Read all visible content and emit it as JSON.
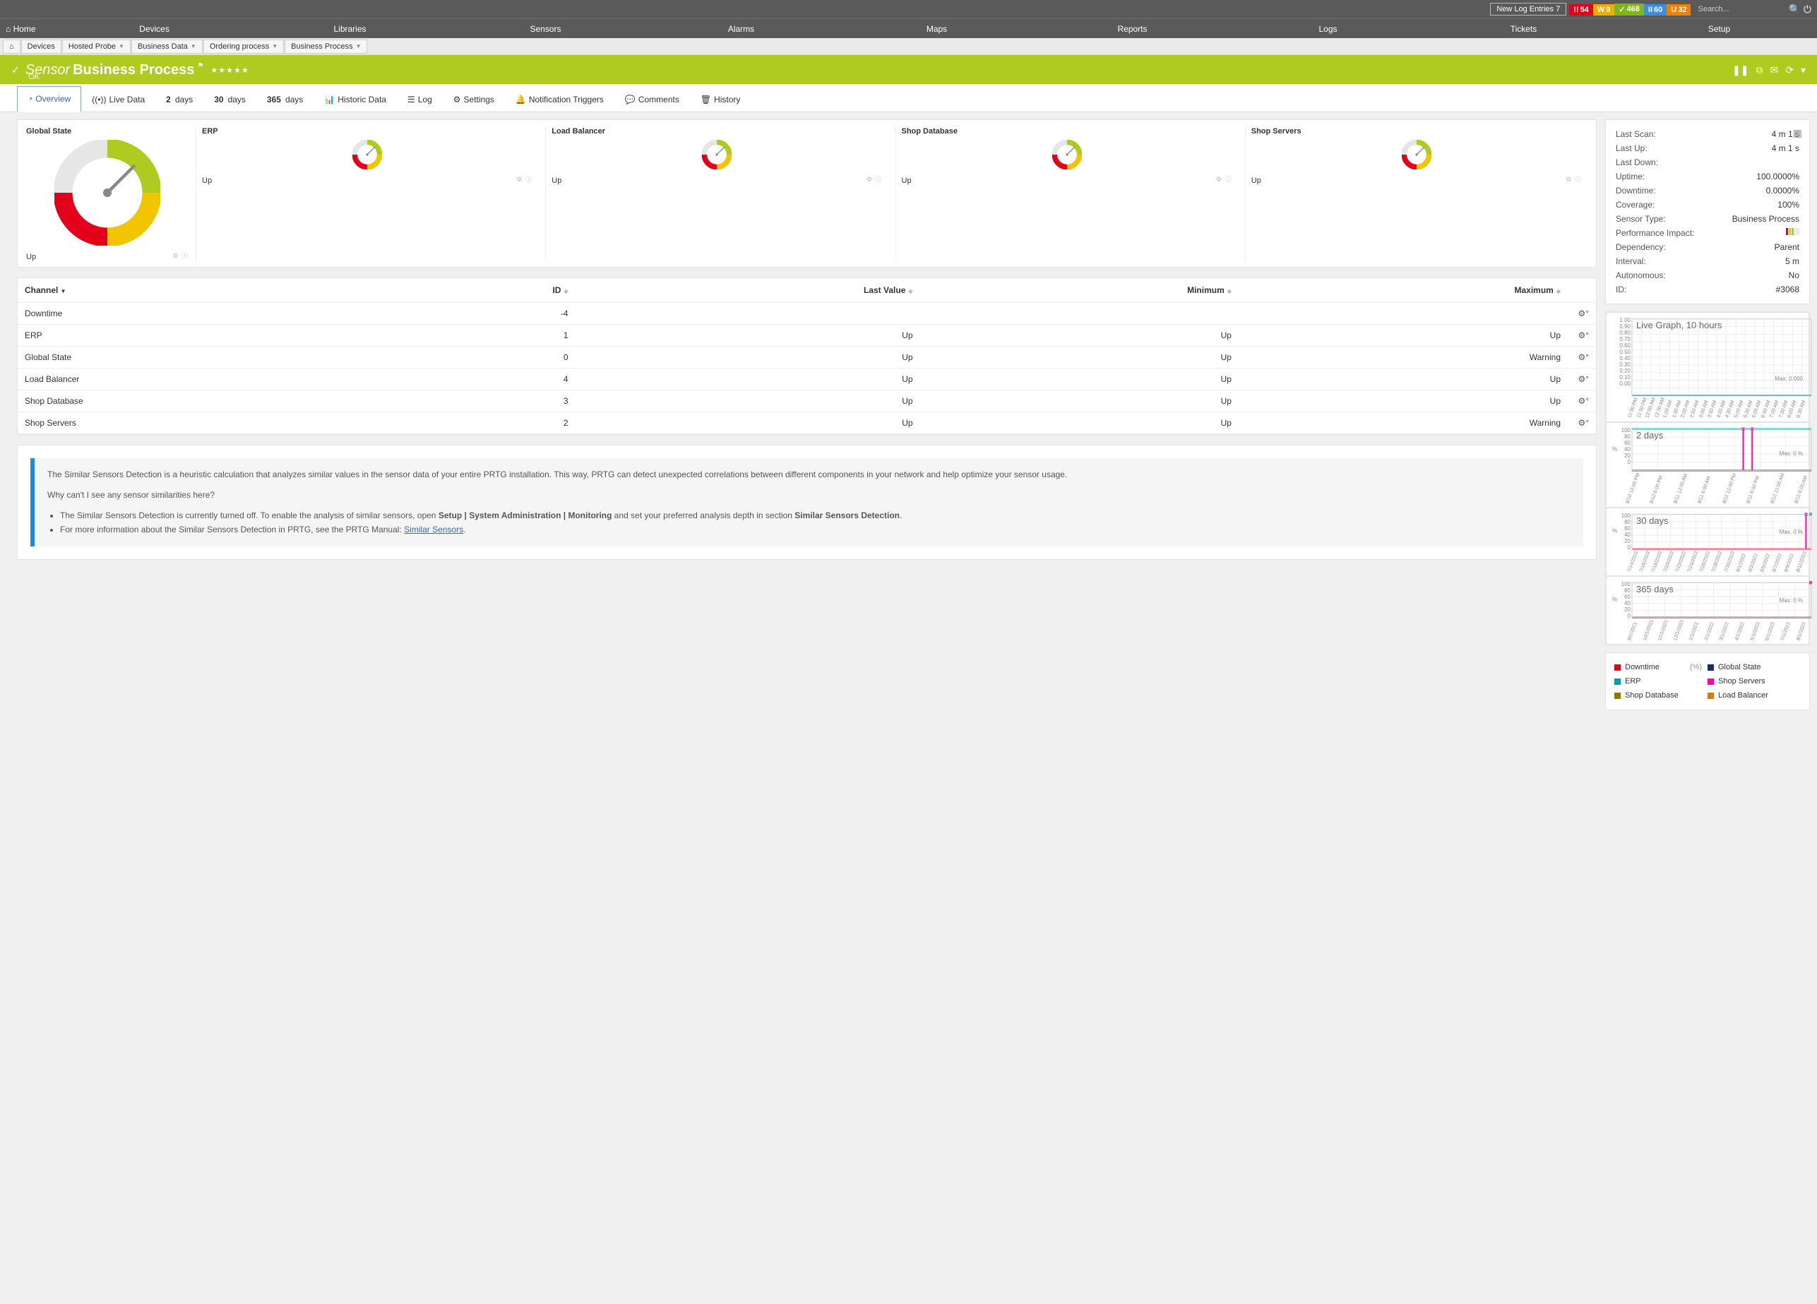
{
  "topbar": {
    "logEntries": {
      "label": "New Log Entries",
      "count": "7"
    },
    "badges": [
      {
        "symbol": "!!",
        "count": "54",
        "bg": "#e2001a"
      },
      {
        "symbol": "W",
        "count": "9",
        "bg": "#f0ad00"
      },
      {
        "symbol": "✓",
        "count": "468",
        "bg": "#7fb718"
      },
      {
        "symbol": "II",
        "count": "60",
        "bg": "#3b8ede"
      },
      {
        "symbol": "U",
        "count": "32",
        "bg": "#f08000"
      }
    ],
    "searchPlaceholder": "Search..."
  },
  "nav": [
    "Home",
    "Devices",
    "Libraries",
    "Sensors",
    "Alarms",
    "Maps",
    "Reports",
    "Logs",
    "Tickets",
    "Setup"
  ],
  "breadcrumb": [
    "Devices",
    "Hosted Probe",
    "Business Data",
    "Ordering process",
    "Business Process"
  ],
  "header": {
    "kind": "Sensor",
    "name": "Business Process",
    "state": "OK"
  },
  "tabs": [
    {
      "icon": "◔",
      "label": "Overview",
      "active": true
    },
    {
      "icon": "((•))",
      "label": "Live Data"
    },
    {
      "num": "2",
      "label": "days"
    },
    {
      "num": "30",
      "label": "days"
    },
    {
      "num": "365",
      "label": "days"
    },
    {
      "icon": "📊",
      "label": "Historic Data"
    },
    {
      "icon": "☰",
      "label": "Log"
    },
    {
      "icon": "⚙",
      "label": "Settings"
    },
    {
      "icon": "🔔",
      "label": "Notification Triggers"
    },
    {
      "icon": "💬",
      "label": "Comments"
    },
    {
      "icon": "🗑",
      "label": "History"
    }
  ],
  "gauges": {
    "main": {
      "title": "Global State",
      "state": "Up"
    },
    "minis": [
      {
        "title": "ERP",
        "state": "Up"
      },
      {
        "title": "Load Balancer",
        "state": "Up"
      },
      {
        "title": "Shop Database",
        "state": "Up"
      },
      {
        "title": "Shop Servers",
        "state": "Up"
      }
    ],
    "colors": {
      "grey": "#e6e6e6",
      "green": "#b0cb1f",
      "yellow": "#f3c500",
      "red": "#e2001a",
      "needle": "#888"
    }
  },
  "channelTable": {
    "columns": [
      "Channel",
      "ID",
      "Last Value",
      "Minimum",
      "Maximum",
      ""
    ],
    "rows": [
      {
        "name": "Downtime",
        "id": "-4",
        "last": "",
        "min": "",
        "max": ""
      },
      {
        "name": "ERP",
        "id": "1",
        "last": "Up",
        "min": "Up",
        "max": "Up"
      },
      {
        "name": "Global State",
        "id": "0",
        "last": "Up",
        "min": "Up",
        "max": "Warning"
      },
      {
        "name": "Load Balancer",
        "id": "4",
        "last": "Up",
        "min": "Up",
        "max": "Up"
      },
      {
        "name": "Shop Database",
        "id": "3",
        "last": "Up",
        "min": "Up",
        "max": "Up"
      },
      {
        "name": "Shop Servers",
        "id": "2",
        "last": "Up",
        "min": "Up",
        "max": "Warning"
      }
    ]
  },
  "infoBox": {
    "p1": "The Similar Sensors Detection is a heuristic calculation that analyzes similar values in the sensor data of your entire PRTG installation. This way, PRTG can detect unexpected correlations between different components in your network and help optimize your sensor usage.",
    "p2": "Why can't I see any sensor similarities here?",
    "li1a": "The Similar Sensors Detection is currently turned off. To enable the analysis of similar sensors, open ",
    "li1b": "Setup | System Administration | Monitoring",
    "li1c": " and set your preferred analysis depth in section ",
    "li1d": "Similar Sensors Detection",
    "li2a": "For more information about the Similar Sensors Detection in PRTG, see the PRTG Manual: ",
    "li2b": "Similar Sensors"
  },
  "details": [
    {
      "lbl": "Last Scan:",
      "val": "4 m 1 s"
    },
    {
      "lbl": "Last Up:",
      "val": "4 m 1 s"
    },
    {
      "lbl": "Last Down:",
      "val": ""
    },
    {
      "lbl": "Uptime:",
      "val": "100.0000%"
    },
    {
      "lbl": "Downtime:",
      "val": "0.0000%"
    },
    {
      "lbl": "Coverage:",
      "val": "100%"
    },
    {
      "lbl": "Sensor Type:",
      "val": "Business Process"
    },
    {
      "lbl": "Performance Impact:",
      "val": "PERF"
    },
    {
      "lbl": "Dependency:",
      "val": "Parent"
    },
    {
      "lbl": "Interval:",
      "val": "5 m"
    },
    {
      "lbl": "Autonomous:",
      "val": "No"
    },
    {
      "lbl": "ID:",
      "val": "#3068"
    }
  ],
  "perfColors": [
    "#e2001a",
    "#f3c500",
    "#b0cb1f",
    "#e6e6e6",
    "#e6e6e6"
  ],
  "graphs": [
    {
      "title": "Live Graph, 10 hours",
      "yLabels": [
        "1.00",
        "0.90",
        "0.80",
        "0.70",
        "0.60",
        "0.50",
        "0.40",
        "0.30",
        "0.20",
        "0.10",
        "0.00"
      ],
      "xLabels": [
        "11:00 PM",
        "11:30 PM",
        "12:00 AM",
        "12:30 AM",
        "1:00 AM",
        "1:30 AM",
        "2:00 AM",
        "2:30 AM",
        "3:00 AM",
        "3:30 AM",
        "4:00 AM",
        "4:30 AM",
        "5:00 AM",
        "5:30 AM",
        "6:00 AM",
        "6:30 AM",
        "7:00 AM",
        "7:30 AM",
        "8:00 AM",
        "8:30 AM"
      ],
      "maxLabel": "Max: 0.000",
      "height": 110,
      "series": [
        {
          "color": "#00a0a0",
          "flat": 100
        }
      ]
    },
    {
      "title": "2 days",
      "yLabels": [
        "100",
        "80",
        "60",
        "40",
        "20",
        "0"
      ],
      "xLabels": [
        "8/10 12:00 PM",
        "8/10 6:00 PM",
        "8/11 12:00 AM",
        "8/11 6:00 AM",
        "8/11 12:00 PM",
        "8/11 6:00 PM",
        "8/12 12:00 AM",
        "8/12 6:00 AM"
      ],
      "maxLabel": "Max: 0 %",
      "height": 60,
      "pct": "%",
      "series": [
        {
          "color": "#00a0a0",
          "flat": 0
        },
        {
          "color": "#e2001a",
          "flat": 100
        }
      ],
      "spikes": {
        "color": "#ff00aa",
        "positions": [
          0.62,
          0.67
        ]
      }
    },
    {
      "title": "30 days",
      "yLabels": [
        "100",
        "80",
        "60",
        "40",
        "20",
        "0"
      ],
      "xLabels": [
        "7/14/2022",
        "7/16/2022",
        "7/18/2022",
        "7/20/2022",
        "7/22/2022",
        "7/24/2022",
        "7/26/2022",
        "7/28/2022",
        "7/30/2022",
        "8/1/2022",
        "8/3/2022",
        "8/5/2022",
        "8/7/2022",
        "8/9/2022",
        "8/11/2022"
      ],
      "maxLabel": "Max: 0 %",
      "height": 50,
      "pct": "%",
      "series": [
        {
          "color": "#e2001a",
          "flat": 100
        }
      ],
      "spikes": {
        "color": "#ff00aa",
        "positions": [
          0.97
        ]
      },
      "endMarker": {
        "color": "#00a0a0"
      }
    },
    {
      "title": "365 days",
      "yLabels": [
        "100",
        "80",
        "60",
        "40",
        "20",
        "0"
      ],
      "xLabels": [
        "9/1/2021",
        "10/1/2021",
        "11/1/2021",
        "12/1/2021",
        "1/1/2022",
        "2/1/2022",
        "3/1/2022",
        "4/1/2022",
        "5/1/2022",
        "6/1/2022",
        "7/1/2022",
        "8/1/2022"
      ],
      "maxLabel": "Max: 0 %",
      "height": 50,
      "pct": "%",
      "series": [
        {
          "color": "#e2001a",
          "flat": 100
        }
      ],
      "endMarker": {
        "color": "#e2001a"
      }
    }
  ],
  "legend": [
    {
      "color": "#e2001a",
      "label": "Downtime",
      "unit": "(%)"
    },
    {
      "color": "#1a2b6d",
      "label": "Global State"
    },
    {
      "color": "#00a0a0",
      "label": "ERP"
    },
    {
      "color": "#ff00aa",
      "label": "Shop Servers"
    },
    {
      "color": "#8a7a00",
      "label": "Shop Database"
    },
    {
      "color": "#d08000",
      "label": "Load Balancer"
    }
  ]
}
